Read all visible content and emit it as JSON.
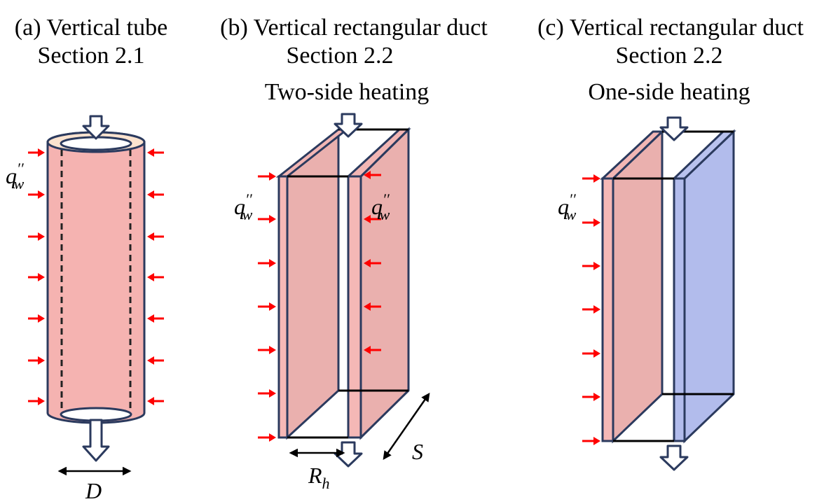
{
  "panels": [
    {
      "title": "(a) Vertical tube",
      "subtitle": "Section 2.1",
      "heat_flux": {
        "symbol": "q",
        "superscript": "′′",
        "subscript": "w"
      },
      "dimension": {
        "symbol": "D"
      }
    },
    {
      "title": "(b) Vertical rectangular duct",
      "subtitle": "Section 2.2",
      "heating": "Two-side heating",
      "heat_flux_left": {
        "symbol": "q",
        "superscript": "′′",
        "subscript": "w"
      },
      "heat_flux_right": {
        "symbol": "q",
        "superscript": "′′",
        "subscript": "w"
      },
      "width": {
        "symbol": "R",
        "subscript": "h"
      },
      "depth": {
        "symbol": "S"
      }
    },
    {
      "title": "(c) Vertical rectangular duct",
      "subtitle": "Section 2.2",
      "heating": "One-side heating",
      "heat_flux": {
        "symbol": "q",
        "superscript": "′′",
        "subscript": "w"
      }
    }
  ]
}
